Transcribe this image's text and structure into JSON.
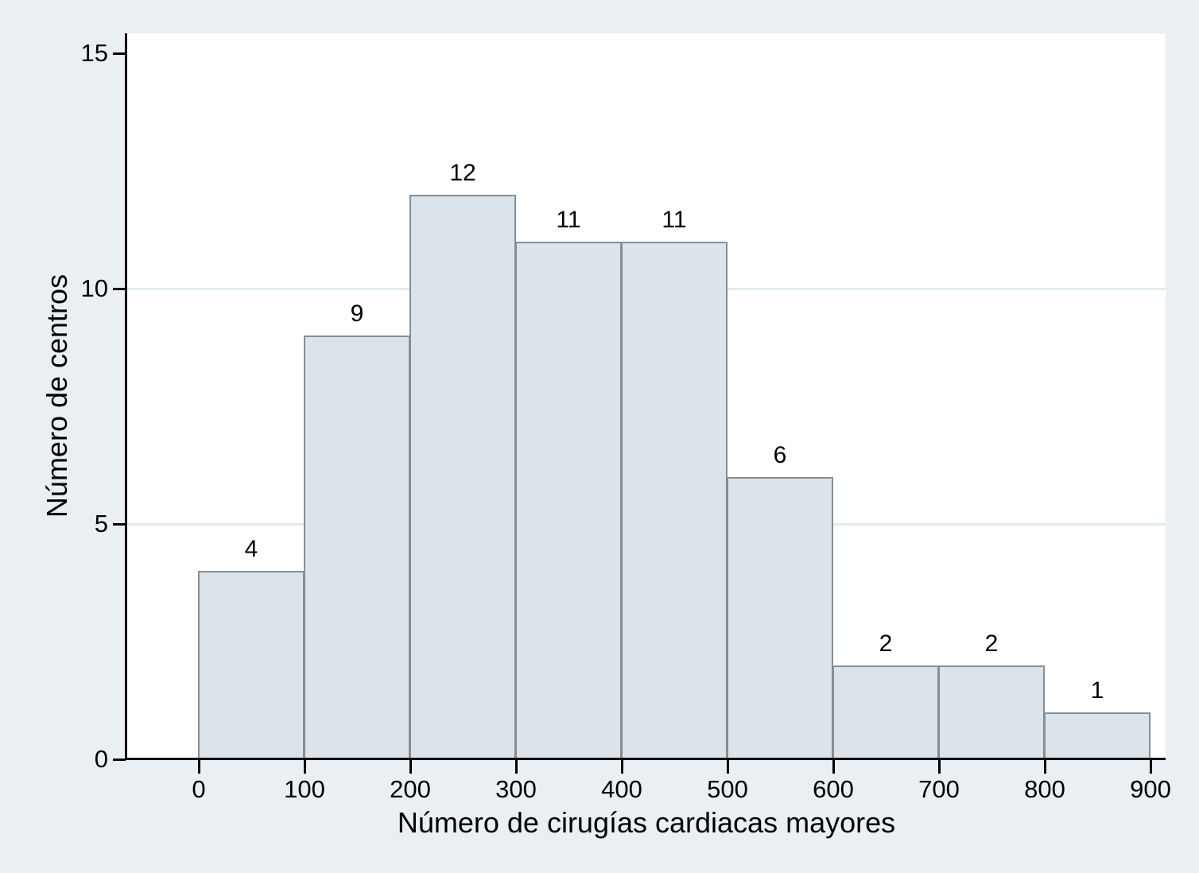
{
  "figure": {
    "background_color": "#e9eff3",
    "plot_background_color": "#ffffff",
    "grid_color": "#e2ebf1",
    "bar_fill_color": "#dae4ea",
    "bar_border_color": "#848e95",
    "axis_color": "#000000",
    "text_color": "#000000"
  },
  "chart_data": {
    "type": "bar",
    "subtype": "histogram",
    "title": "",
    "xlabel": "Número de cirugías cardiacas mayores",
    "ylabel": "Número de centros",
    "bin_width": 100,
    "bins": [
      {
        "x0": 0,
        "x1": 100,
        "count": 4,
        "label": "4"
      },
      {
        "x0": 100,
        "x1": 200,
        "count": 9,
        "label": "9"
      },
      {
        "x0": 200,
        "x1": 300,
        "count": 12,
        "label": "12"
      },
      {
        "x0": 300,
        "x1": 400,
        "count": 11,
        "label": "11"
      },
      {
        "x0": 400,
        "x1": 500,
        "count": 11,
        "label": "11"
      },
      {
        "x0": 500,
        "x1": 600,
        "count": 6,
        "label": "6"
      },
      {
        "x0": 600,
        "x1": 700,
        "count": 2,
        "label": "2"
      },
      {
        "x0": 700,
        "x1": 800,
        "count": 2,
        "label": "2"
      },
      {
        "x0": 800,
        "x1": 900,
        "count": 1,
        "label": "1"
      }
    ],
    "x_ticks": [
      {
        "value": 0,
        "label": "0"
      },
      {
        "value": 100,
        "label": "100"
      },
      {
        "value": 200,
        "label": "200"
      },
      {
        "value": 300,
        "label": "300"
      },
      {
        "value": 400,
        "label": "400"
      },
      {
        "value": 500,
        "label": "500"
      },
      {
        "value": 600,
        "label": "600"
      },
      {
        "value": 700,
        "label": "700"
      },
      {
        "value": 800,
        "label": "800"
      },
      {
        "value": 900,
        "label": "900"
      }
    ],
    "y_ticks": [
      {
        "value": 0,
        "label": "0"
      },
      {
        "value": 5,
        "label": "5"
      },
      {
        "value": 10,
        "label": "10"
      },
      {
        "value": 15,
        "label": "15"
      }
    ],
    "grid_y_values": [
      5,
      10
    ],
    "xlim": [
      0,
      900
    ],
    "ylim": [
      0,
      15
    ],
    "grid": "horizontal-only",
    "legend": null
  }
}
